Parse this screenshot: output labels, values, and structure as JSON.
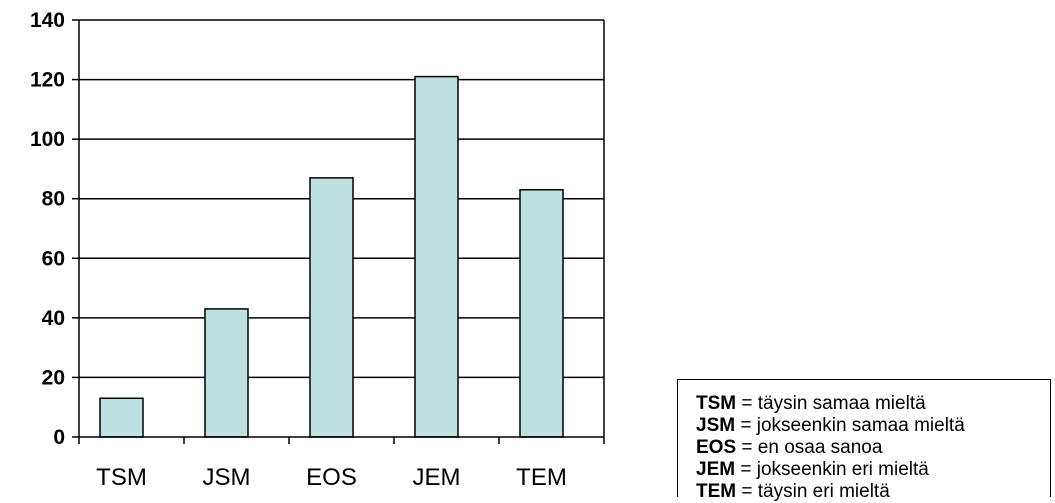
{
  "chart_data": {
    "type": "bar",
    "title": "",
    "xlabel": "",
    "ylabel": "",
    "categories": [
      "TSM",
      "JSM",
      "EOS",
      "JEM",
      "TEM"
    ],
    "values": [
      13,
      43,
      87,
      121,
      83
    ],
    "ylim": [
      0,
      140
    ],
    "yticks": [
      "0",
      "20",
      "40",
      "60",
      "80",
      "100",
      "120",
      "140"
    ],
    "grid": true,
    "bar_color": "#bde0e0",
    "legend_placement": "bottom-right"
  },
  "legend": {
    "entries": [
      {
        "abbr": "TSM",
        "sep": " = ",
        "text": "täysin samaa mieltä"
      },
      {
        "abbr": "JSM",
        "sep": " = ",
        "text": "jokseenkin samaa mieltä"
      },
      {
        "abbr": "EOS",
        "sep": " = ",
        "text": "en osaa sanoa"
      },
      {
        "abbr": "JEM",
        "sep": " = ",
        "text": "jokseenkin eri mieltä"
      },
      {
        "abbr": "TEM",
        "sep": " = ",
        "text": "täysin eri mieltä"
      }
    ]
  }
}
